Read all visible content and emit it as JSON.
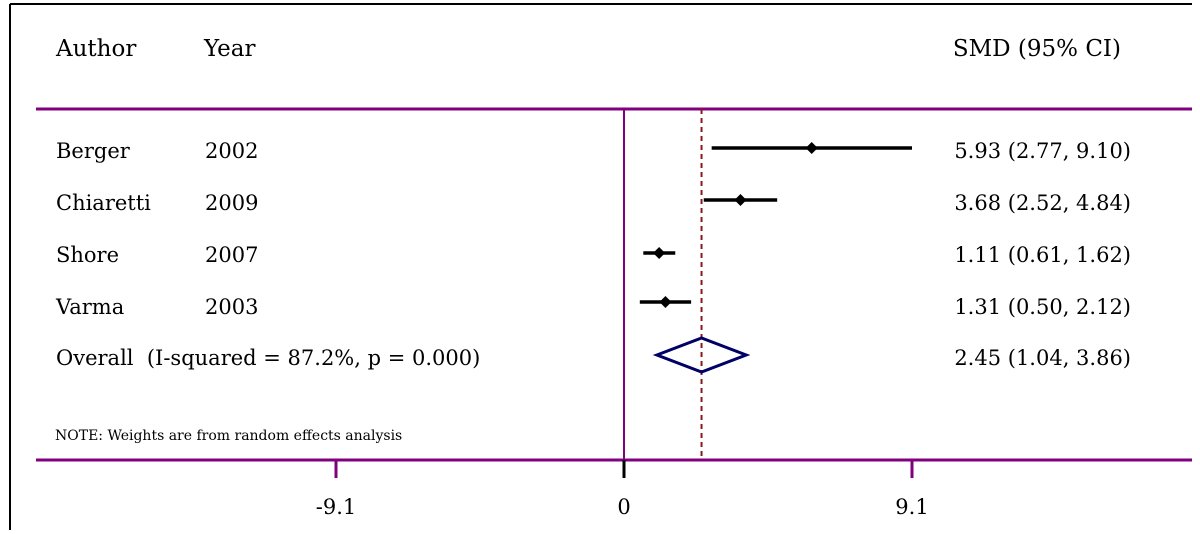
{
  "header": {
    "author_label": "Author",
    "year_label": "Year",
    "effect_label": "SMD (95% CI)"
  },
  "chart_data": {
    "type": "forest",
    "studies": [
      {
        "author": "Berger",
        "year": "2002",
        "smd": 5.93,
        "lower": 2.77,
        "upper": 9.1,
        "label": "5.93 (2.77, 9.10)"
      },
      {
        "author": "Chiaretti",
        "year": "2009",
        "smd": 3.68,
        "lower": 2.52,
        "upper": 4.84,
        "label": "3.68 (2.52, 4.84)"
      },
      {
        "author": "Shore",
        "year": "2007",
        "smd": 1.11,
        "lower": 0.61,
        "upper": 1.62,
        "label": "1.11 (0.61, 1.62)"
      },
      {
        "author": "Varma",
        "year": "2003",
        "smd": 1.31,
        "lower": 0.5,
        "upper": 2.12,
        "label": "1.31 (0.50, 2.12)"
      }
    ],
    "overall": {
      "label_text": "Overall  (I-squared = 87.2%, p = 0.000)",
      "smd": 2.45,
      "lower": 1.04,
      "upper": 3.86,
      "label": "2.45 (1.04, 3.86)"
    },
    "note": "NOTE: Weights are from random effects analysis",
    "x_ticks": [
      {
        "value": -9.1,
        "label": "-9.1"
      },
      {
        "value": 0,
        "label": "0"
      },
      {
        "value": 9.1,
        "label": "9.1"
      }
    ],
    "null_line": 0,
    "xlim": [
      -9.1,
      9.1
    ],
    "colors": {
      "frame": "#800080",
      "estimate": "#000000",
      "overall_diamond": "#000066",
      "pooled_line": "#8b1a1a",
      "axis": "#000000"
    }
  }
}
